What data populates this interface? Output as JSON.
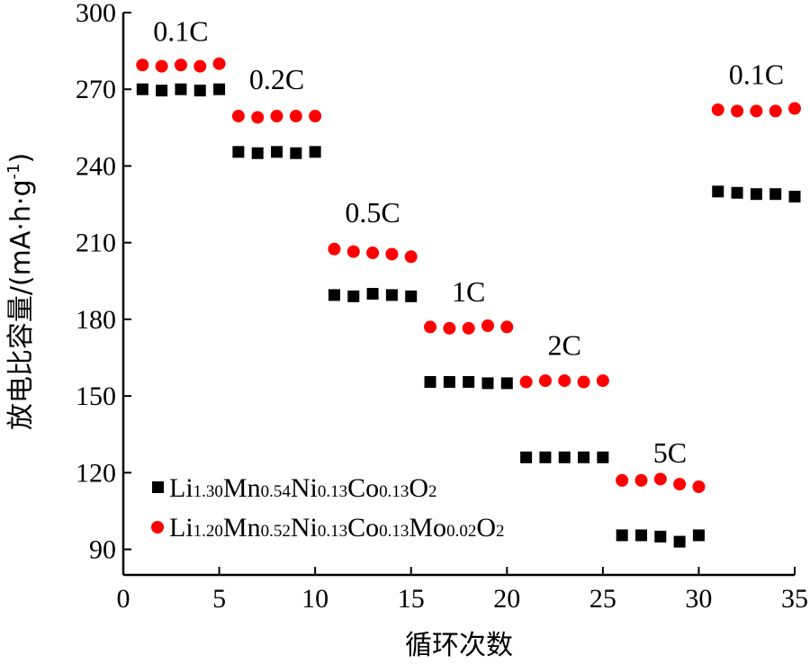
{
  "chart_data": {
    "type": "scatter",
    "xlabel": "循环次数",
    "ylabel": "放电比容量/(mA·h·g",
    "ylabel_sup": "-1",
    "ylabel_close": ")",
    "xlim": [
      0,
      35
    ],
    "ylim": [
      80,
      300
    ],
    "xticks": [
      0,
      5,
      10,
      15,
      20,
      25,
      30,
      35
    ],
    "yticks": [
      90,
      120,
      150,
      180,
      210,
      240,
      270,
      300
    ],
    "grid": false,
    "legend_position": "bottom-left",
    "rate_labels": [
      {
        "text": "0.1C",
        "x": 3,
        "y": 289
      },
      {
        "text": "0.2C",
        "x": 8,
        "y": 270
      },
      {
        "text": "0.5C",
        "x": 13,
        "y": 218
      },
      {
        "text": "1C",
        "x": 18,
        "y": 187
      },
      {
        "text": "2C",
        "x": 23,
        "y": 166
      },
      {
        "text": "5C",
        "x": 28.5,
        "y": 124
      },
      {
        "text": "0.1C",
        "x": 33,
        "y": 272
      }
    ],
    "series": [
      {
        "legend": [
          {
            "t": "Li",
            "sub": false
          },
          {
            "t": "1.30",
            "sub": true
          },
          {
            "t": "Mn",
            "sub": false
          },
          {
            "t": "0.54",
            "sub": true
          },
          {
            "t": "Ni",
            "sub": false
          },
          {
            "t": "0.13",
            "sub": true
          },
          {
            "t": "Co",
            "sub": false
          },
          {
            "t": "0.13",
            "sub": true
          },
          {
            "t": "O",
            "sub": false
          },
          {
            "t": "2",
            "sub": true
          }
        ],
        "color": "#000000",
        "marker": "square",
        "x": [
          1,
          2,
          3,
          4,
          5,
          6,
          7,
          8,
          9,
          10,
          11,
          12,
          13,
          14,
          15,
          16,
          17,
          18,
          19,
          20,
          21,
          22,
          23,
          24,
          25,
          26,
          27,
          28,
          29,
          30,
          31,
          32,
          33,
          34,
          35
        ],
        "y": [
          270,
          269.5,
          270,
          269.5,
          270,
          245.5,
          245,
          245.5,
          245,
          245.5,
          189.5,
          189,
          190,
          189.5,
          189,
          155.5,
          155.5,
          155.5,
          155,
          155,
          126,
          126,
          126,
          126,
          126,
          95.5,
          95.5,
          95,
          93,
          95.5,
          230,
          229.5,
          229,
          229,
          228
        ]
      },
      {
        "legend": [
          {
            "t": "Li",
            "sub": false
          },
          {
            "t": "1.20",
            "sub": true
          },
          {
            "t": "Mn",
            "sub": false
          },
          {
            "t": "0.52",
            "sub": true
          },
          {
            "t": "Ni",
            "sub": false
          },
          {
            "t": "0.13",
            "sub": true
          },
          {
            "t": "Co",
            "sub": false
          },
          {
            "t": "0.13",
            "sub": true
          },
          {
            "t": "Mo",
            "sub": false
          },
          {
            "t": "0.02",
            "sub": true
          },
          {
            "t": "O",
            "sub": false
          },
          {
            "t": "2",
            "sub": true
          }
        ],
        "color": "#ff0000",
        "marker": "circle",
        "x": [
          1,
          2,
          3,
          4,
          5,
          6,
          7,
          8,
          9,
          10,
          11,
          12,
          13,
          14,
          15,
          16,
          17,
          18,
          19,
          20,
          21,
          22,
          23,
          24,
          25,
          26,
          27,
          28,
          29,
          30,
          31,
          32,
          33,
          34,
          35
        ],
        "y": [
          279.5,
          279,
          279.5,
          279,
          280,
          259.5,
          259,
          259.5,
          259.5,
          259.5,
          207.5,
          206.5,
          206,
          205.5,
          204.5,
          177,
          176.5,
          176.5,
          177.5,
          177,
          155.5,
          156,
          156,
          155.5,
          156,
          117,
          117,
          117.5,
          115.5,
          114.5,
          262,
          261.5,
          261.5,
          261.5,
          262.5
        ]
      }
    ]
  }
}
